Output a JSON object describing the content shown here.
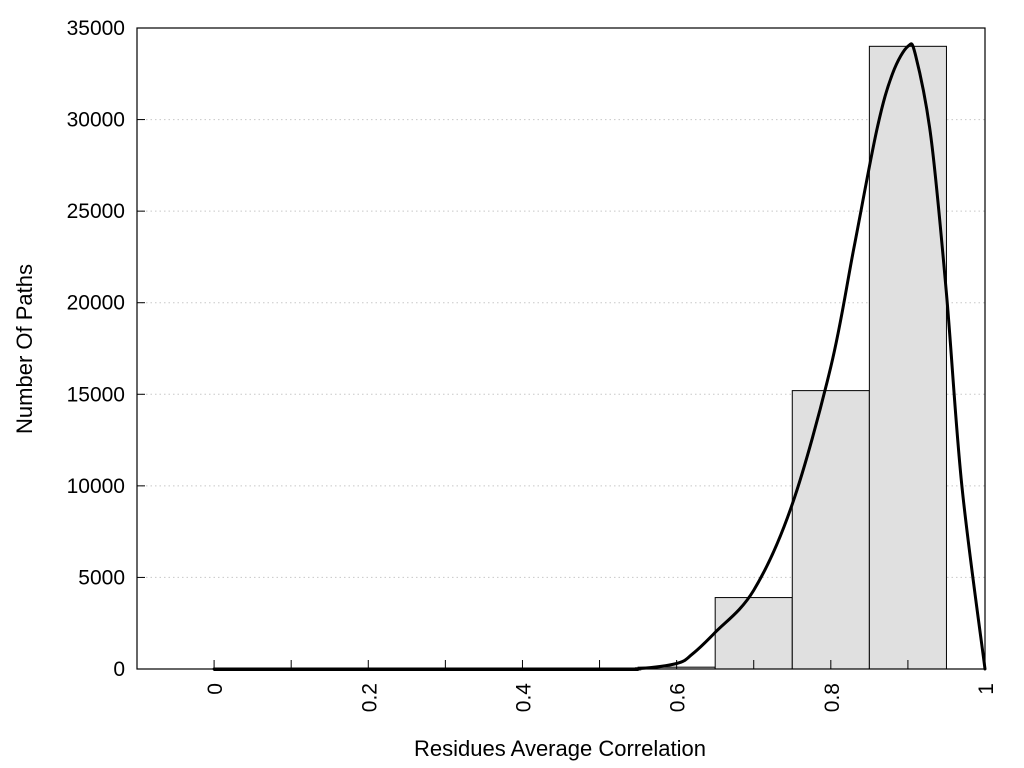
{
  "chart_data": {
    "type": "bar",
    "title": "",
    "xlabel": "Residues Average Correlation",
    "ylabel": "Number Of Paths",
    "xlim": [
      -0.1,
      1.0
    ],
    "ylim": [
      0,
      35000
    ],
    "x_ticks": [
      0,
      0.1,
      0.2,
      0.3,
      0.4,
      0.5,
      0.6,
      0.7,
      0.8,
      0.9,
      1
    ],
    "x_tick_labels": [
      "0",
      "0.2",
      "0.4",
      "0.6",
      "0.8",
      "1"
    ],
    "x_tick_label_values": [
      0,
      0.2,
      0.4,
      0.6,
      0.8,
      1
    ],
    "y_ticks": [
      0,
      5000,
      10000,
      15000,
      20000,
      25000,
      30000,
      35000
    ],
    "y_tick_labels": [
      "0",
      "5000",
      "10000",
      "15000",
      "20000",
      "25000",
      "30000",
      "35000"
    ],
    "grid": "horizontal-dotted",
    "bins": [
      {
        "x0": 0.0,
        "x1": 0.1,
        "value": 0
      },
      {
        "x0": 0.1,
        "x1": 0.2,
        "value": 0
      },
      {
        "x0": 0.2,
        "x1": 0.3,
        "value": 0
      },
      {
        "x0": 0.3,
        "x1": 0.4,
        "value": 0
      },
      {
        "x0": 0.4,
        "x1": 0.5,
        "value": 0
      },
      {
        "x0": 0.5,
        "x1": 0.55,
        "value": 0
      },
      {
        "x0": 0.55,
        "x1": 0.65,
        "value": 100
      },
      {
        "x0": 0.65,
        "x1": 0.75,
        "value": 3900
      },
      {
        "x0": 0.75,
        "x1": 0.85,
        "value": 15200
      },
      {
        "x0": 0.85,
        "x1": 0.95,
        "value": 34000
      }
    ],
    "fit_curve": {
      "x": [
        0,
        0.5,
        0.55,
        0.6,
        0.62,
        0.65,
        0.7,
        0.75,
        0.8,
        0.83,
        0.86,
        0.88,
        0.9,
        0.91,
        0.93,
        0.95,
        0.97,
        1.0
      ],
      "y": [
        0,
        0,
        20,
        300,
        800,
        2000,
        4300,
        9000,
        16500,
        23000,
        29500,
        32500,
        34000,
        33500,
        29000,
        20500,
        10000,
        0
      ]
    },
    "colors": {
      "bar_fill": "#e0e0e0",
      "bar_stroke": "#000000",
      "curve": "#000000",
      "grid": "#c8c8c8"
    }
  }
}
